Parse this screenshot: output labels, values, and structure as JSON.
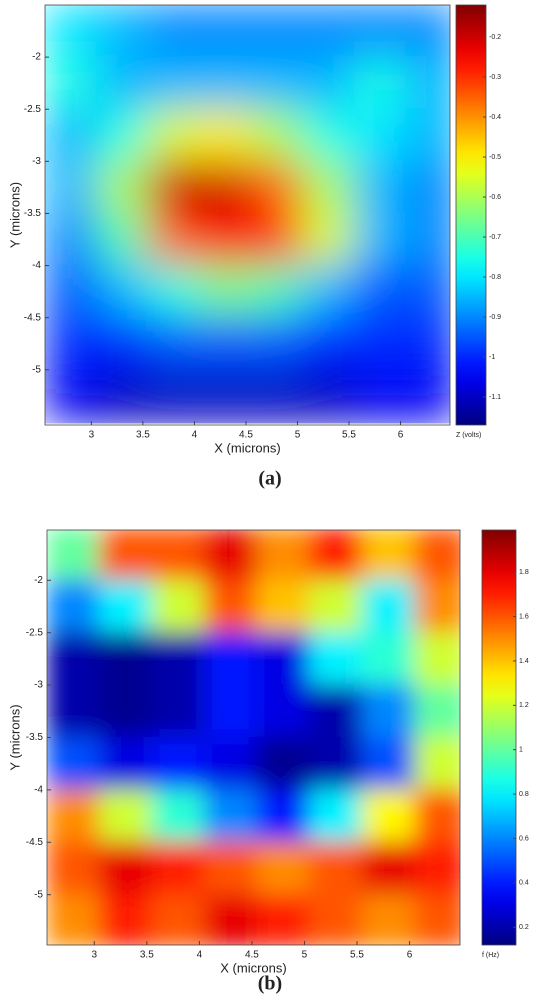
{
  "chart_data": [
    {
      "type": "heatmap",
      "caption": "(a)",
      "xlabel": "X (microns)",
      "ylabel": "Y (microns)",
      "colorbar_label": "Z (volts)",
      "colormap": "jet",
      "x": [
        2.8,
        3.3,
        3.8,
        4.3,
        4.8,
        5.3,
        5.8,
        6.3
      ],
      "y": [
        -1.75,
        -2.25,
        -2.75,
        -3.25,
        -3.75,
        -4.25,
        -4.75,
        -5.25
      ],
      "z": [
        [
          -0.8,
          -0.85,
          -0.9,
          -0.9,
          -0.9,
          -0.9,
          -0.9,
          -0.9
        ],
        [
          -0.75,
          -0.85,
          -0.85,
          -0.85,
          -0.85,
          -0.85,
          -0.75,
          -0.85
        ],
        [
          -0.85,
          -0.75,
          -0.55,
          -0.5,
          -0.6,
          -0.75,
          -0.8,
          -0.85
        ],
        [
          -0.85,
          -0.6,
          -0.2,
          -0.2,
          -0.35,
          -0.6,
          -0.85,
          -0.9
        ],
        [
          -0.9,
          -0.7,
          -0.35,
          -0.25,
          -0.3,
          -0.55,
          -0.85,
          -0.9
        ],
        [
          -0.95,
          -0.85,
          -0.75,
          -0.65,
          -0.7,
          -0.85,
          -0.95,
          -0.95
        ],
        [
          -1.0,
          -1.0,
          -0.95,
          -0.95,
          -0.95,
          -1.0,
          -1.0,
          -1.0
        ],
        [
          -1.05,
          -1.1,
          -1.1,
          -1.1,
          -1.1,
          -1.1,
          -1.05,
          -1.05
        ]
      ],
      "xlim": [
        2.55,
        6.48
      ],
      "xticks": [
        3,
        3.5,
        4,
        4.5,
        5,
        5.5,
        6
      ],
      "ylim": [
        -5.53,
        -1.5
      ],
      "yticks": [
        -2,
        -2.5,
        -3,
        -3.5,
        -4,
        -4.5,
        -5
      ],
      "zlim": [
        -1.17,
        -0.12
      ],
      "zticks": [
        -0.2,
        -0.3,
        -0.4,
        -0.5,
        -0.6,
        -0.7,
        -0.8,
        -0.9,
        -1,
        -1.1
      ]
    },
    {
      "type": "heatmap",
      "caption": "(b)",
      "xlabel": "X (microns)",
      "ylabel": "Y (microns)",
      "colorbar_label": "f (Hz)",
      "colormap": "jet",
      "x": [
        2.8,
        3.3,
        3.8,
        4.3,
        4.8,
        5.3,
        5.8,
        6.3
      ],
      "y": [
        -1.75,
        -2.25,
        -2.75,
        -3.25,
        -3.75,
        -4.25,
        -4.75,
        -5.25
      ],
      "z": [
        [
          1.0,
          1.6,
          1.6,
          1.8,
          1.5,
          1.7,
          1.4,
          1.6
        ],
        [
          0.6,
          0.8,
          1.2,
          1.6,
          1.4,
          1.2,
          0.8,
          1.5
        ],
        [
          0.2,
          0.15,
          0.2,
          0.4,
          0.3,
          0.8,
          0.9,
          1.2
        ],
        [
          0.2,
          0.15,
          0.2,
          0.4,
          0.3,
          0.2,
          0.6,
          1.0
        ],
        [
          0.5,
          0.3,
          0.4,
          0.3,
          0.15,
          0.2,
          0.5,
          1.2
        ],
        [
          1.5,
          1.2,
          0.9,
          0.6,
          0.4,
          0.8,
          1.3,
          1.6
        ],
        [
          1.6,
          1.8,
          1.7,
          1.6,
          1.5,
          1.6,
          1.8,
          1.7
        ],
        [
          1.5,
          1.7,
          1.6,
          1.8,
          1.7,
          1.6,
          1.5,
          1.6
        ]
      ],
      "xlim": [
        2.55,
        6.48
      ],
      "xticks": [
        3,
        3.5,
        4,
        4.5,
        5,
        5.5,
        6
      ],
      "ylim": [
        -5.48,
        -1.52
      ],
      "yticks": [
        -2,
        -2.5,
        -3,
        -3.5,
        -4,
        -4.5,
        -5
      ],
      "zlim": [
        0.12,
        1.99
      ],
      "zticks": [
        0.2,
        0.4,
        0.6,
        0.8,
        1,
        1.2,
        1.4,
        1.6,
        1.8
      ]
    }
  ]
}
